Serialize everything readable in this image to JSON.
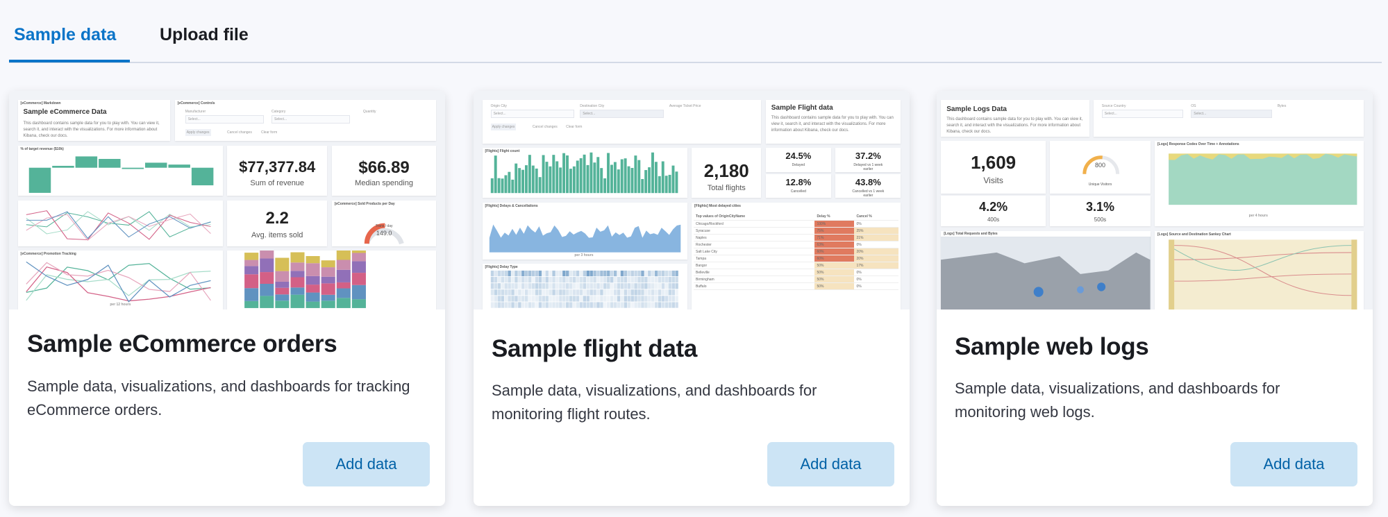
{
  "tabs": [
    {
      "label": "Sample data",
      "active": true
    },
    {
      "label": "Upload file",
      "active": false
    }
  ],
  "accent": "#0b74c8",
  "cards": [
    {
      "title": "Sample eCommerce orders",
      "description": "Sample data, visualizations, and dashboards for tracking eCommerce orders.",
      "button": "Add data",
      "thumb": {
        "md_title": "Sample eCommerce Data",
        "md_text": "This dashboard contains sample data for you to play with. You can view it, search it, and interact with the visualizations. For more information about Kibana, check our docs.",
        "markdown_panel": "[eCommerce] Markdown",
        "controls_panel": "[eCommerce] Controls",
        "manufacturer": "Manufacturer",
        "category": "Category",
        "quantity": "Quantity",
        "select": "Select...",
        "apply": "Apply changes",
        "cancel": "Cancel changes",
        "clear": "Clear form",
        "target_panel": "% of target revenue ($10k)",
        "revenue": "$77,377.84",
        "revenue_label": "Sum of revenue",
        "median": "$66.89",
        "median_label": "Median spending",
        "avg": "2.2",
        "avg_label": "Avg. items sold",
        "sold_panel": "[eCommerce] Sold Products per Day",
        "gauge_label": "Trans / day",
        "gauge_value": "149.0",
        "promo_panel": "[eCommerce] Promotion Tracking",
        "per12": "per 12 hours"
      }
    },
    {
      "title": "Sample flight data",
      "description": "Sample data, visualizations, and dashboards for monitoring flight routes.",
      "button": "Add data",
      "thumb": {
        "origin": "Origin City",
        "dest": "Destination City",
        "price": "Average Ticket Price",
        "select": "Select...",
        "apply": "Apply changes",
        "cancel": "Cancel changes",
        "clear": "Clear form",
        "md_title": "Sample Flight data",
        "md_text": "This dashboard contains sample data for you to play with. You can view it, search it, and interact with the visualizations. For more information about Kibana, check our docs.",
        "count_panel": "[Flights] Flight count",
        "total": "2,180",
        "total_label": "Total flights",
        "delayed": "24.5%",
        "delayed_label": "Delayed",
        "delayed_wk": "37.2%",
        "delayed_wk_label": "Delayed vs 1 week earlier",
        "cancelled": "12.8%",
        "cancelled_label": "Cancelled",
        "cancelled_wk": "43.8%",
        "cancelled_wk_label": "Cancelled vs 1 week earlier",
        "delays_panel": "[Flights] Delays & Cancellations",
        "per3": "per 3 hours",
        "delaytype_panel": "[Flights] Delay Type",
        "cities_panel": "[Flights] Most delayed cities",
        "table_headers": [
          "Top values of OriginCityName",
          "Delay %",
          "Cancel %"
        ],
        "rows": [
          [
            "Chicago/Rockford",
            "100%",
            "0%"
          ],
          [
            "Syracuse",
            "75%",
            "25%"
          ],
          [
            "Naples",
            "71%",
            "21%"
          ],
          [
            "Rochester",
            "63%",
            "0%"
          ],
          [
            "Salt Lake City",
            "60%",
            "20%"
          ],
          [
            "Tampa",
            "60%",
            "20%"
          ],
          [
            "Bangor",
            "50%",
            "17%"
          ],
          [
            "Belleville",
            "50%",
            "0%"
          ],
          [
            "Birmingham",
            "50%",
            "0%"
          ],
          [
            "Buffalo",
            "50%",
            "0%"
          ]
        ]
      }
    },
    {
      "title": "Sample web logs",
      "description": "Sample data, visualizations, and dashboards for monitoring web logs.",
      "button": "Add data",
      "thumb": {
        "md_title": "Sample Logs Data",
        "md_text": "This dashboard contains sample data for you to play with. You can view it, search it, and interact with the visualizations. For more information about Kibana, check our docs.",
        "country": "Source Country",
        "os": "OS",
        "bytes": "Bytes",
        "select": "Select...",
        "visits": "1,609",
        "visits_label": "Visits",
        "gauge_value": "800",
        "gauge_label": "Unique Visitors",
        "e400": "4.2%",
        "e400_label": "400s",
        "e500": "3.1%",
        "e500_label": "500s",
        "codes_panel": "[Logs] Response Codes Over Time + Annotations",
        "per4": "per 4 hours",
        "map_panel": "[Logs] Total Requests and Bytes",
        "sankey_panel": "[Logs] Source and Destination Sankey Chart"
      }
    }
  ]
}
